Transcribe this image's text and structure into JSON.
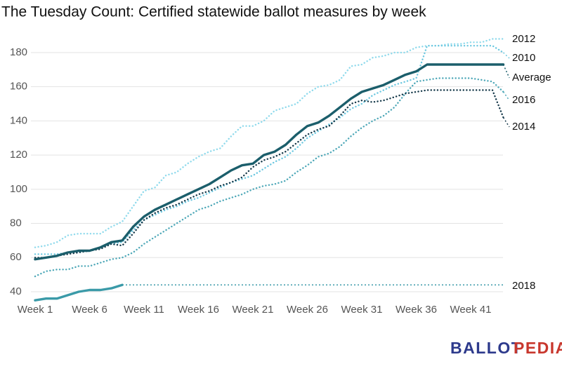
{
  "chart_data": {
    "type": "line",
    "title": "The Tuesday Count: Certified statewide ballot measures by week",
    "x": [
      1,
      2,
      3,
      4,
      5,
      6,
      7,
      8,
      9,
      10,
      11,
      12,
      13,
      14,
      15,
      16,
      17,
      18,
      19,
      20,
      21,
      22,
      23,
      24,
      25,
      26,
      27,
      28,
      29,
      30,
      31,
      32,
      33,
      34,
      35,
      36,
      37,
      38,
      39,
      40,
      41,
      42,
      43,
      44
    ],
    "xlim": [
      0.7,
      44
    ],
    "xticks": [
      {
        "value": 1,
        "label": "Week 1"
      },
      {
        "value": 6,
        "label": "Week 6"
      },
      {
        "value": 11,
        "label": "Week 11"
      },
      {
        "value": 16,
        "label": "Week 16"
      },
      {
        "value": 21,
        "label": "Week 21"
      },
      {
        "value": 26,
        "label": "Week 26"
      },
      {
        "value": 31,
        "label": "Week 31"
      },
      {
        "value": 36,
        "label": "Week 36"
      },
      {
        "value": 41,
        "label": "Week 41"
      }
    ],
    "ylim": [
      34,
      190
    ],
    "yticks": [
      40,
      60,
      80,
      100,
      120,
      140,
      160,
      180
    ],
    "grid": true,
    "series": [
      {
        "name": "2012",
        "color": "#8fdaec",
        "style": "dotted",
        "values": [
          66,
          67,
          69,
          73,
          74,
          74,
          74,
          78,
          81,
          90,
          99,
          101,
          108,
          110,
          115,
          119,
          122,
          124,
          131,
          137,
          137,
          140,
          146,
          148,
          150,
          156,
          160,
          161,
          164,
          172,
          173,
          177,
          178,
          180,
          180,
          183,
          184,
          184,
          185,
          185,
          186,
          186,
          188,
          188
        ]
      },
      {
        "name": "2010",
        "color": "#6cc8e0",
        "style": "dotted",
        "values": [
          62,
          62,
          62,
          63,
          63,
          64,
          66,
          68,
          69,
          76,
          82,
          85,
          88,
          90,
          93,
          95,
          98,
          101,
          104,
          106,
          108,
          112,
          116,
          119,
          124,
          130,
          134,
          138,
          142,
          147,
          150,
          155,
          158,
          161,
          163,
          165,
          184,
          184,
          184,
          184,
          184,
          184,
          184,
          180
        ]
      },
      {
        "name": "Average",
        "color": "#1b5e6b",
        "style": "solid",
        "values": [
          59,
          60,
          61,
          63,
          64,
          64,
          66,
          69,
          70,
          78,
          84,
          88,
          91,
          94,
          97,
          100,
          103,
          107,
          111,
          114,
          115,
          120,
          122,
          126,
          132,
          137,
          139,
          143,
          148,
          153,
          157,
          159,
          161,
          164,
          167,
          169,
          173,
          173,
          173,
          173,
          173,
          173,
          173,
          173
        ]
      },
      {
        "name": "2016",
        "color": "#4ea8b8",
        "style": "dotted",
        "values": [
          49,
          52,
          53,
          53,
          55,
          55,
          57,
          59,
          60,
          63,
          68,
          72,
          76,
          80,
          84,
          88,
          90,
          93,
          95,
          97,
          100,
          102,
          103,
          105,
          110,
          114,
          119,
          121,
          125,
          131,
          136,
          140,
          143,
          148,
          156,
          163,
          164,
          165,
          165,
          165,
          165,
          164,
          163,
          157
        ]
      },
      {
        "name": "2014",
        "color": "#16394a",
        "style": "dotted",
        "values": [
          60,
          60,
          61,
          62,
          63,
          64,
          65,
          68,
          67,
          74,
          82,
          86,
          89,
          91,
          94,
          97,
          99,
          102,
          104,
          107,
          113,
          117,
          119,
          122,
          127,
          132,
          135,
          137,
          143,
          150,
          152,
          151,
          152,
          154,
          156,
          157,
          158,
          158,
          158,
          158,
          158,
          158,
          158,
          142
        ]
      },
      {
        "name": "2018",
        "color": "#3a9aa8",
        "style": "solid",
        "values": [
          35,
          36,
          36,
          38,
          40,
          41,
          41,
          42,
          44,
          null,
          null,
          null,
          null,
          null,
          null,
          null,
          null,
          null,
          null,
          null,
          null,
          null,
          null,
          null,
          null,
          null,
          null,
          null,
          null,
          null,
          null,
          null,
          null,
          null,
          null,
          null,
          null,
          null,
          null,
          null,
          null,
          null,
          null,
          null
        ]
      }
    ]
  },
  "logo": {
    "part1": "BALLOT",
    "part2": "PEDIA"
  }
}
